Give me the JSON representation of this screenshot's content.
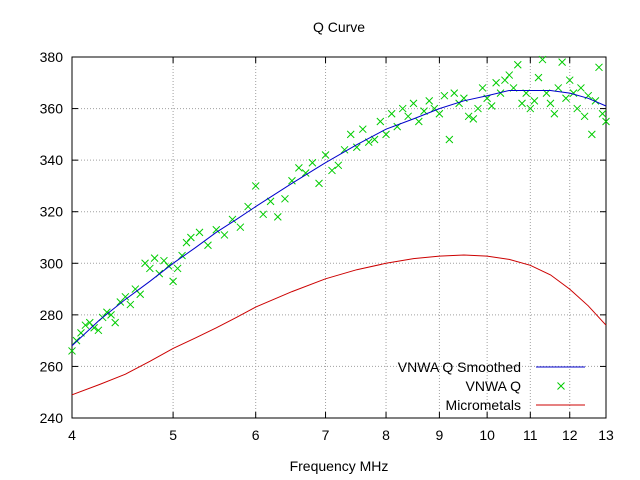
{
  "chart_data": {
    "type": "line",
    "title": "Q Curve",
    "xlabel": "Frequency MHz",
    "ylabel": "",
    "x_scale": "log",
    "xlim": [
      4,
      13
    ],
    "ylim": [
      240,
      380
    ],
    "x_ticks": [
      4,
      5,
      6,
      7,
      8,
      9,
      10,
      11,
      12,
      13
    ],
    "y_ticks": [
      240,
      260,
      280,
      300,
      320,
      340,
      360,
      380
    ],
    "grid": true,
    "legend_position": "bottom-right",
    "series": [
      {
        "name": "VNWA Q Smoothed",
        "style": "line",
        "color": "#0000cc",
        "x": [
          4.0,
          4.25,
          4.5,
          4.75,
          5.0,
          5.25,
          5.5,
          5.75,
          6.0,
          6.5,
          7.0,
          7.5,
          8.0,
          8.5,
          9.0,
          9.5,
          10.0,
          10.5,
          11.0,
          11.5,
          12.0,
          12.5,
          13.0
        ],
        "y": [
          268,
          278,
          286,
          293,
          300,
          306,
          312,
          317,
          322,
          331,
          339,
          346,
          352,
          356,
          360,
          363,
          365,
          367,
          367,
          367,
          366,
          364,
          361
        ]
      },
      {
        "name": "VNWA Q",
        "style": "points",
        "color": "#00cc00",
        "x": [
          4.0,
          4.04,
          4.08,
          4.12,
          4.16,
          4.2,
          4.24,
          4.28,
          4.32,
          4.36,
          4.4,
          4.45,
          4.5,
          4.55,
          4.6,
          4.65,
          4.7,
          4.75,
          4.8,
          4.85,
          4.9,
          4.95,
          5.0,
          5.05,
          5.1,
          5.15,
          5.2,
          5.3,
          5.4,
          5.5,
          5.6,
          5.7,
          5.8,
          5.9,
          6.0,
          6.1,
          6.2,
          6.3,
          6.4,
          6.5,
          6.6,
          6.7,
          6.8,
          6.9,
          7.0,
          7.1,
          7.2,
          7.3,
          7.4,
          7.5,
          7.6,
          7.7,
          7.8,
          7.9,
          8.0,
          8.1,
          8.2,
          8.3,
          8.4,
          8.5,
          8.6,
          8.7,
          8.8,
          8.9,
          9.0,
          9.1,
          9.2,
          9.3,
          9.4,
          9.5,
          9.6,
          9.7,
          9.8,
          9.9,
          10.0,
          10.1,
          10.2,
          10.3,
          10.4,
          10.5,
          10.6,
          10.7,
          10.8,
          10.9,
          11.0,
          11.1,
          11.2,
          11.3,
          11.4,
          11.5,
          11.6,
          11.7,
          11.8,
          11.9,
          12.0,
          12.1,
          12.2,
          12.3,
          12.4,
          12.5,
          12.6,
          12.7,
          12.8,
          12.9,
          13.0
        ],
        "y": [
          266,
          270,
          273,
          276,
          277,
          275,
          274,
          279,
          281,
          280,
          277,
          285,
          287,
          284,
          290,
          288,
          300,
          298,
          302,
          296,
          301,
          299,
          293,
          298,
          303,
          308,
          310,
          312,
          307,
          313,
          311,
          317,
          314,
          322,
          330,
          319,
          324,
          318,
          325,
          332,
          337,
          335,
          339,
          331,
          342,
          336,
          338,
          344,
          350,
          345,
          352,
          347,
          348,
          355,
          350,
          358,
          353,
          360,
          357,
          362,
          355,
          359,
          363,
          360,
          358,
          365,
          348,
          366,
          362,
          364,
          357,
          356,
          360,
          368,
          364,
          361,
          370,
          366,
          371,
          373,
          368,
          377,
          362,
          366,
          360,
          363,
          372,
          379,
          366,
          362,
          358,
          368,
          378,
          364,
          371,
          366,
          360,
          368,
          357,
          365,
          350,
          363,
          376,
          358,
          355
        ]
      },
      {
        "name": "Micrometals",
        "style": "line",
        "color": "#cc0000",
        "x": [
          4.0,
          4.25,
          4.5,
          4.75,
          5.0,
          5.25,
          5.5,
          5.75,
          6.0,
          6.5,
          7.0,
          7.5,
          8.0,
          8.5,
          9.0,
          9.5,
          10.0,
          10.5,
          11.0,
          11.5,
          12.0,
          12.5,
          13.0
        ],
        "y": [
          249,
          253,
          257,
          262,
          267,
          271,
          275,
          279,
          283,
          289,
          294,
          297.5,
          300,
          301.8,
          302.8,
          303.2,
          302.8,
          301.5,
          299.2,
          295.5,
          290,
          283.5,
          276
        ]
      }
    ]
  }
}
